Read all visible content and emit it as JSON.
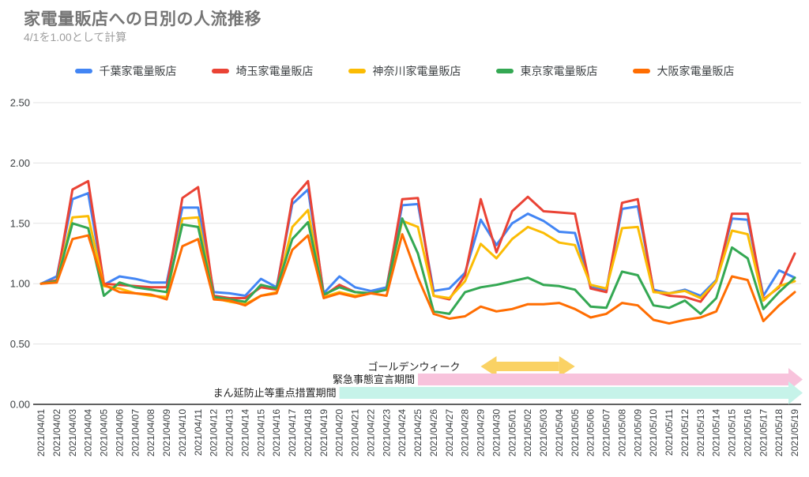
{
  "header": {
    "title": "家電量販店への日別の人流推移",
    "subtitle": "4/1を1.00として計算"
  },
  "chart_data": {
    "type": "line",
    "title": "家電量販店への日別の人流推移",
    "subtitle": "4/1を1.00として計算",
    "ylim": [
      0.0,
      2.5
    ],
    "yticks": [
      "0.00",
      "0.50",
      "1.00",
      "1.50",
      "2.00",
      "2.50"
    ],
    "grid": true,
    "legend_position": "top",
    "x": [
      "2021/04/01",
      "2021/04/02",
      "2021/04/03",
      "2021/04/04",
      "2021/04/05",
      "2021/04/06",
      "2021/04/07",
      "2021/04/08",
      "2021/04/09",
      "2021/04/10",
      "2021/04/11",
      "2021/04/12",
      "2021/04/13",
      "2021/04/14",
      "2021/04/15",
      "2021/04/16",
      "2021/04/17",
      "2021/04/18",
      "2021/04/19",
      "2021/04/20",
      "2021/04/21",
      "2021/04/22",
      "2021/04/23",
      "2021/04/24",
      "2021/04/25",
      "2021/04/26",
      "2021/04/27",
      "2021/04/28",
      "2021/04/29",
      "2021/04/30",
      "2021/05/01",
      "2021/05/02",
      "2021/05/03",
      "2021/05/04",
      "2021/05/05",
      "2021/05/06",
      "2021/05/07",
      "2021/05/08",
      "2021/05/09",
      "2021/05/10",
      "2021/05/11",
      "2021/05/12",
      "2021/05/13",
      "2021/05/14",
      "2021/05/15",
      "2021/05/16",
      "2021/05/17",
      "2021/05/18",
      "2021/05/19"
    ],
    "series": [
      {
        "key": "chiba",
        "name": "千葉家電量販店",
        "color": "#4285F4",
        "values": [
          1.0,
          1.06,
          1.7,
          1.75,
          0.99,
          1.06,
          1.04,
          1.01,
          1.01,
          1.63,
          1.63,
          0.93,
          0.92,
          0.9,
          1.04,
          0.97,
          1.66,
          1.78,
          0.92,
          1.06,
          0.97,
          0.94,
          0.97,
          1.65,
          1.66,
          0.94,
          0.96,
          1.09,
          1.53,
          1.32,
          1.5,
          1.58,
          1.52,
          1.43,
          1.42,
          0.97,
          0.95,
          1.62,
          1.64,
          0.95,
          0.92,
          0.95,
          0.9,
          1.03,
          1.54,
          1.53,
          0.9,
          1.11,
          1.05
        ]
      },
      {
        "key": "saitama",
        "name": "埼玉家電量販店",
        "color": "#EA4335",
        "values": [
          1.0,
          1.03,
          1.78,
          1.85,
          1.0,
          0.99,
          0.98,
          0.97,
          0.97,
          1.71,
          1.8,
          0.9,
          0.88,
          0.88,
          0.97,
          0.95,
          1.7,
          1.85,
          0.9,
          0.99,
          0.93,
          0.92,
          0.95,
          1.7,
          1.71,
          0.9,
          0.87,
          1.07,
          1.7,
          1.26,
          1.6,
          1.72,
          1.6,
          1.59,
          1.58,
          0.96,
          0.93,
          1.67,
          1.7,
          0.94,
          0.9,
          0.89,
          0.85,
          1.02,
          1.58,
          1.58,
          0.87,
          0.97,
          1.25
        ]
      },
      {
        "key": "kanagawa",
        "name": "神奈川家電量販店",
        "color": "#FBBC04",
        "values": [
          1.0,
          1.02,
          1.55,
          1.56,
          0.98,
          0.96,
          0.92,
          0.9,
          0.89,
          1.54,
          1.55,
          0.88,
          0.85,
          0.83,
          0.9,
          0.93,
          1.47,
          1.61,
          0.89,
          0.93,
          0.9,
          0.92,
          0.95,
          1.52,
          1.47,
          0.9,
          0.88,
          1.02,
          1.33,
          1.21,
          1.37,
          1.47,
          1.42,
          1.34,
          1.32,
          0.99,
          0.96,
          1.46,
          1.47,
          0.93,
          0.92,
          0.94,
          0.88,
          1.02,
          1.44,
          1.41,
          0.86,
          0.98,
          1.02
        ]
      },
      {
        "key": "tokyo",
        "name": "東京家電量販店",
        "color": "#34A853",
        "values": [
          1.0,
          1.02,
          1.5,
          1.46,
          0.9,
          1.01,
          0.97,
          0.95,
          0.93,
          1.49,
          1.47,
          0.89,
          0.87,
          0.85,
          0.99,
          0.96,
          1.37,
          1.51,
          0.91,
          0.97,
          0.93,
          0.92,
          0.95,
          1.54,
          1.25,
          0.77,
          0.75,
          0.93,
          0.97,
          0.99,
          1.02,
          1.05,
          0.99,
          0.98,
          0.95,
          0.81,
          0.8,
          1.1,
          1.07,
          0.82,
          0.8,
          0.86,
          0.75,
          0.88,
          1.3,
          1.21,
          0.79,
          0.93,
          1.05
        ]
      },
      {
        "key": "osaka",
        "name": "大阪家電量販店",
        "color": "#FF6D01",
        "values": [
          1.0,
          1.01,
          1.37,
          1.4,
          0.99,
          0.93,
          0.92,
          0.91,
          0.87,
          1.31,
          1.37,
          0.87,
          0.86,
          0.82,
          0.9,
          0.92,
          1.28,
          1.4,
          0.88,
          0.92,
          0.89,
          0.92,
          0.9,
          1.41,
          1.05,
          0.75,
          0.71,
          0.73,
          0.81,
          0.77,
          0.79,
          0.83,
          0.83,
          0.84,
          0.79,
          0.72,
          0.75,
          0.84,
          0.82,
          0.7,
          0.67,
          0.7,
          0.72,
          0.77,
          1.06,
          1.03,
          0.69,
          0.82,
          0.93
        ]
      }
    ],
    "annotations": [
      {
        "key": "golden-week",
        "label": "ゴールデンウィーク",
        "type": "double-arrow",
        "start": "2021/04/29",
        "end": "2021/05/05",
        "color": "#FAD264"
      },
      {
        "key": "state-of-emergency",
        "label": "緊急事態宣言期間",
        "type": "band-arrow",
        "start": "2021/04/25",
        "end": "2021/05/19",
        "color": "#F8C3DC"
      },
      {
        "key": "priority-measures",
        "label": "まん延防止等重点措置期間",
        "type": "band-arrow",
        "start": "2021/04/20",
        "end": "2021/05/19",
        "color": "#C6F3E9"
      }
    ]
  }
}
